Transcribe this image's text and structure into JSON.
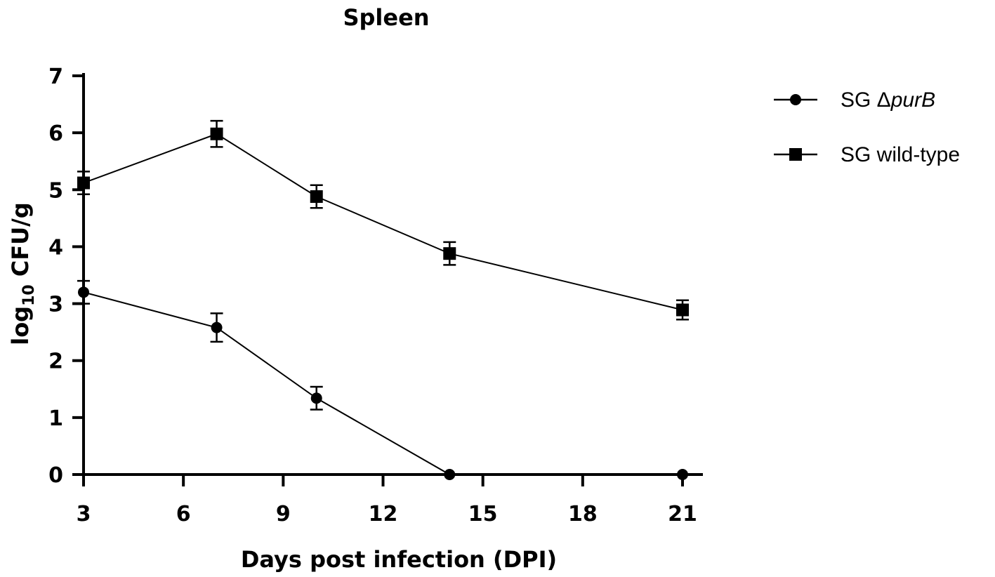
{
  "chart_data": {
    "type": "line",
    "title": "Spleen",
    "xlabel": "Days post infection (DPI)",
    "ylabel": {
      "base": "log",
      "sub": "10",
      "rest": " CFU/g"
    },
    "xlim": [
      3,
      21
    ],
    "ylim": [
      0,
      7
    ],
    "xticks": [
      3,
      6,
      9,
      12,
      15,
      18,
      21
    ],
    "yticks": [
      0,
      1,
      2,
      3,
      4,
      5,
      6,
      7
    ],
    "legend_position": "top-right",
    "series": [
      {
        "name": {
          "prefix": "SG Δ",
          "italic": "purB"
        },
        "marker": "circle",
        "x": [
          3,
          7,
          10,
          14,
          21
        ],
        "y": [
          3.2,
          2.58,
          1.34,
          0,
          0
        ],
        "err": [
          0.2,
          0.25,
          0.2,
          0,
          0
        ]
      },
      {
        "name": {
          "prefix": "SG wild-type",
          "italic": ""
        },
        "marker": "square",
        "x": [
          3,
          7,
          10,
          14,
          21
        ],
        "y": [
          5.12,
          5.98,
          4.88,
          3.88,
          2.89
        ],
        "err": [
          0.2,
          0.23,
          0.2,
          0.2,
          0.17
        ]
      }
    ]
  }
}
